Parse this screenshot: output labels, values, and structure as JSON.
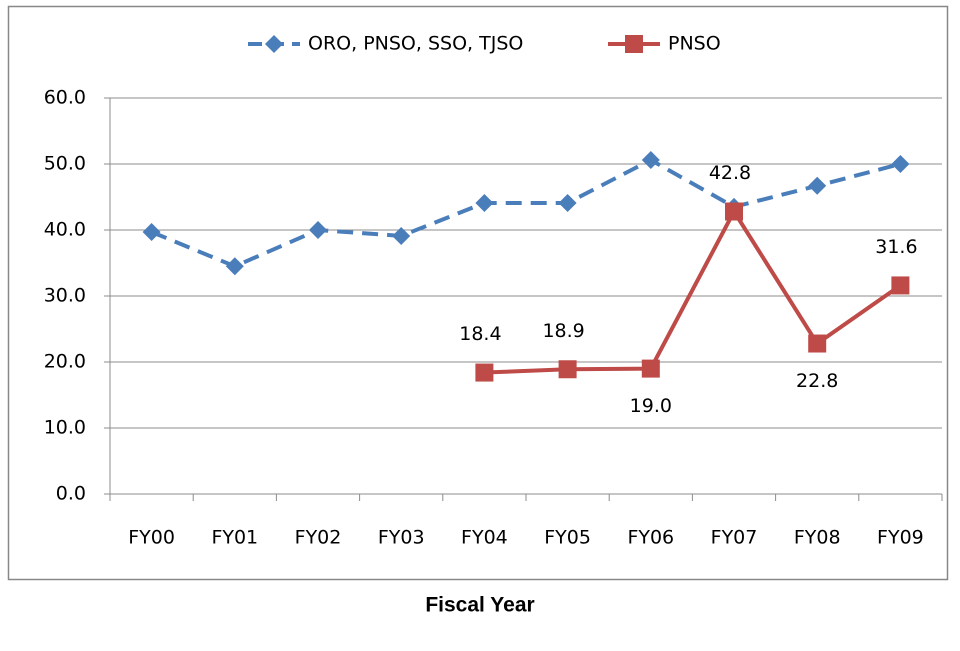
{
  "chart_data": {
    "type": "line",
    "x_label": "Fiscal Year",
    "categories": [
      "FY00",
      "FY01",
      "FY02",
      "FY03",
      "FY04",
      "FY05",
      "FY06",
      "FY07",
      "FY08",
      "FY09"
    ],
    "series": [
      {
        "name": "ORO, PNSO, SSO, TJSO",
        "color": "#4a7ebb",
        "dashed": true,
        "marker": "diamond",
        "values": [
          39.7,
          34.5,
          40.0,
          39.1,
          44.1,
          44.1,
          50.6,
          43.5,
          46.7,
          50.0
        ]
      },
      {
        "name": "PNSO",
        "color": "#be4b48",
        "dashed": false,
        "marker": "square",
        "values": [
          null,
          null,
          null,
          null,
          18.4,
          18.9,
          19.0,
          42.8,
          22.8,
          31.6
        ],
        "value_labels": [
          null,
          null,
          null,
          null,
          "18.4",
          "18.9",
          "19.0",
          "42.8",
          "22.8",
          "31.6"
        ]
      }
    ],
    "ylim": [
      0,
      60
    ],
    "yticks": [
      {
        "value": 0,
        "label": "0.0"
      },
      {
        "value": 10,
        "label": "10.0"
      },
      {
        "value": 20,
        "label": "20.0"
      },
      {
        "value": 30,
        "label": "30.0"
      },
      {
        "value": 40,
        "label": "40.0"
      },
      {
        "value": 50,
        "label": "50.0"
      },
      {
        "value": 60,
        "label": "60.0"
      }
    ],
    "grid": true,
    "legend": "top"
  }
}
